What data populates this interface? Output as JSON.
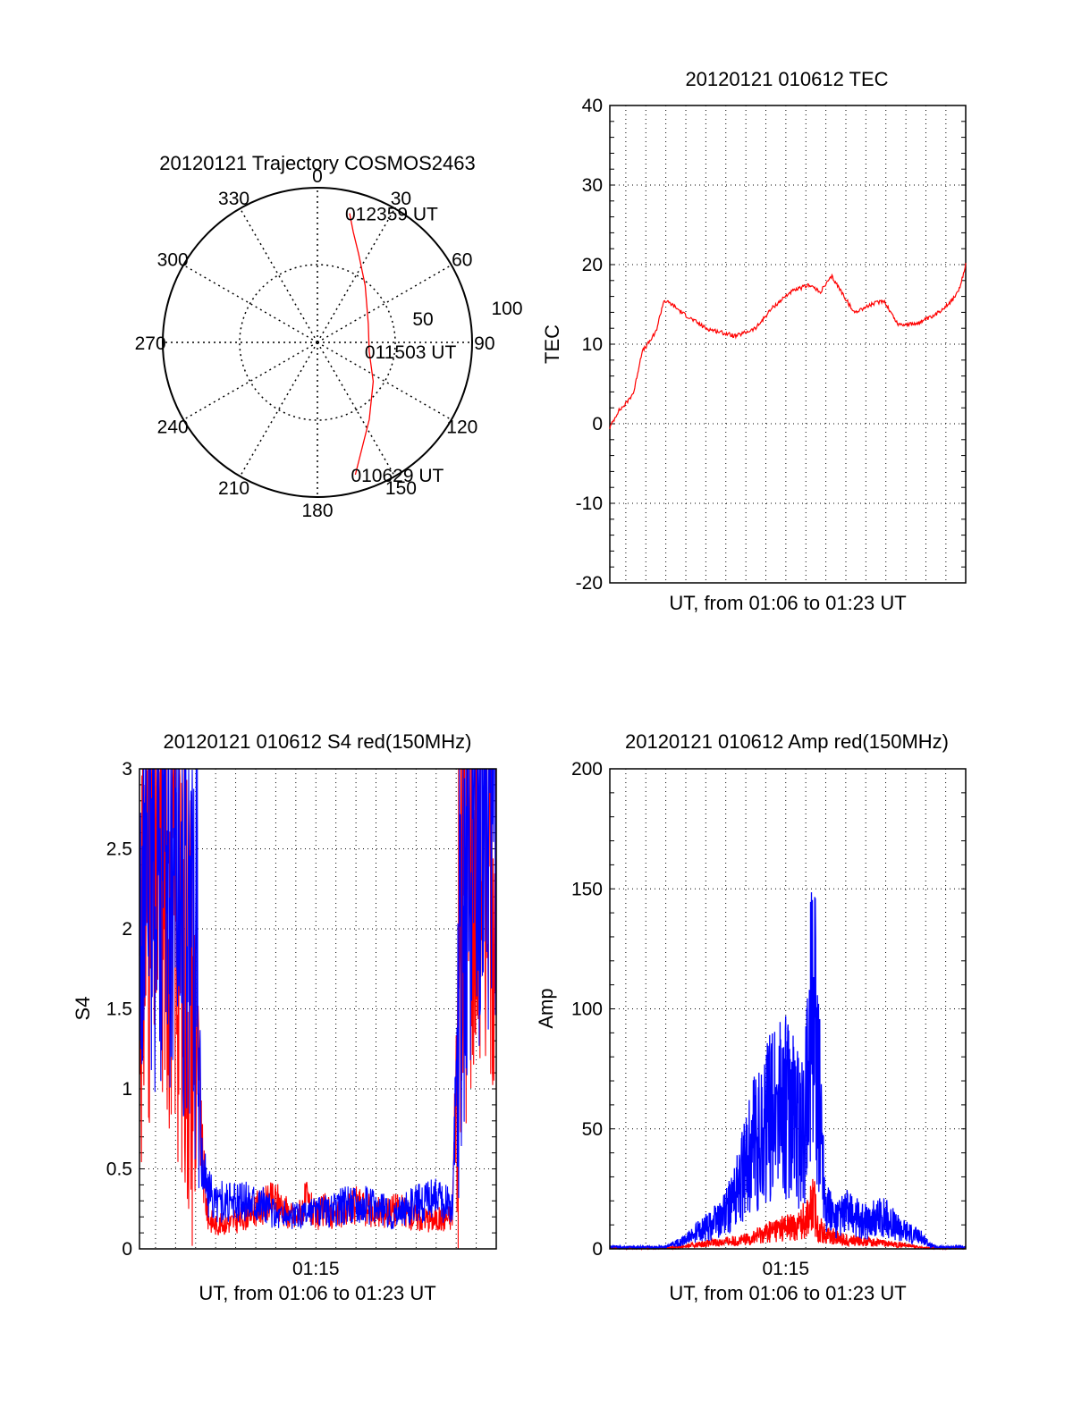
{
  "colors": {
    "red": "#ff0000",
    "blue": "#0000ff",
    "axis": "#000000",
    "grid": "#000000",
    "background": "#ffffff"
  },
  "chart_data": [
    {
      "type": "polar",
      "title": "20120121 Trajectory COSMOS2463",
      "angle_labels": [
        {
          "deg": 0,
          "text": "0"
        },
        {
          "deg": 30,
          "text": "30"
        },
        {
          "deg": 60,
          "text": "60"
        },
        {
          "deg": 90,
          "text": "90"
        },
        {
          "deg": 120,
          "text": "120"
        },
        {
          "deg": 150,
          "text": "150"
        },
        {
          "deg": 180,
          "text": "180"
        },
        {
          "deg": 210,
          "text": "210"
        },
        {
          "deg": 240,
          "text": "240"
        },
        {
          "deg": 270,
          "text": "270"
        },
        {
          "deg": 300,
          "text": "300"
        },
        {
          "deg": 330,
          "text": "330"
        }
      ],
      "radial_labels": [
        "50",
        "100"
      ],
      "rmax": 100,
      "grid": true,
      "track": {
        "color": "#ff0000",
        "points": [
          {
            "az": 14,
            "r": 86
          },
          {
            "az": 18,
            "r": 75
          },
          {
            "az": 25,
            "r": 63
          },
          {
            "az": 40,
            "r": 48
          },
          {
            "az": 70,
            "r": 35
          },
          {
            "az": 100,
            "r": 34
          },
          {
            "az": 125,
            "r": 44
          },
          {
            "az": 146,
            "r": 60
          },
          {
            "az": 164,
            "r": 89
          }
        ]
      },
      "annotations": [
        {
          "text": "012359 UT",
          "az": 14,
          "r": 86
        },
        {
          "text": "011503 UT",
          "az": 100,
          "r": 34
        },
        {
          "text": "010629 UT",
          "az": 164,
          "r": 89
        }
      ]
    },
    {
      "type": "line",
      "title": "20120121 010612 TEC",
      "xlabel": "UT, from 01:06 to 01:23 UT",
      "ylabel": "TEC",
      "ylim": [
        -20,
        40
      ],
      "yticks": [
        -20,
        -10,
        0,
        10,
        20,
        30,
        40
      ],
      "xlim": [
        6.2,
        23.99
      ],
      "grid": true,
      "series": [
        {
          "color": "#ff0000",
          "x": [
            6.2,
            6.6,
            7.0,
            7.4,
            7.8,
            8.1,
            8.5,
            8.9,
            9.3,
            9.9,
            11.0,
            12.5,
            13.5,
            14.3,
            15.2,
            16.2,
            16.7,
            17.3,
            17.8,
            18.4,
            19.3,
            19.9,
            20.6,
            21.4,
            22.4,
            23.3,
            23.7,
            23.99
          ],
          "y": [
            -0.5,
            1.5,
            2.5,
            4.0,
            9.0,
            10.0,
            11.5,
            15.5,
            15.0,
            13.8,
            12.0,
            11.0,
            12.0,
            14.5,
            16.5,
            17.5,
            16.5,
            18.5,
            16.5,
            14.0,
            15.0,
            15.5,
            12.5,
            12.5,
            13.5,
            15.5,
            17.0,
            20.0
          ]
        }
      ]
    },
    {
      "type": "line",
      "title": "20120121 010612 S4 red(150MHz)",
      "xlabel": "UT, from 01:06 to 01:23 UT",
      "ylabel": "S4",
      "ylim": [
        0,
        3
      ],
      "yticks": [
        0,
        0.5,
        1,
        1.5,
        2,
        2.5,
        3
      ],
      "ytick_labels": [
        "0",
        "0.5",
        "1",
        "1.5",
        "2",
        "2.5",
        "3"
      ],
      "xticks": [
        {
          "value": 15.0,
          "label": "01:15"
        }
      ],
      "xlim": [
        6.2,
        24.0
      ],
      "grid": true,
      "series": [
        {
          "color": "#ff0000",
          "x": [
            6.2,
            7.0,
            8.0,
            9.0,
            9.3,
            9.6,
            10.0,
            11.0,
            12.0,
            13.0,
            14.0,
            14.5,
            15.0,
            15.5,
            16.0,
            17.0,
            18.0,
            19.0,
            20.0,
            21.0,
            21.8,
            22.2,
            22.8,
            23.5,
            24.0
          ],
          "y": [
            2.0,
            2.5,
            2.2,
            1.5,
            0.6,
            0.2,
            0.15,
            0.17,
            0.25,
            0.3,
            0.18,
            0.3,
            0.2,
            0.25,
            0.2,
            0.28,
            0.22,
            0.25,
            0.2,
            0.18,
            0.2,
            2.0,
            2.6,
            2.8,
            2.5
          ]
        },
        {
          "color": "#0000ff",
          "x": [
            6.2,
            7.0,
            8.0,
            9.0,
            9.3,
            9.6,
            10.0,
            11.0,
            12.0,
            13.0,
            14.0,
            15.0,
            16.0,
            17.0,
            18.0,
            19.0,
            20.0,
            21.0,
            21.8,
            22.2,
            22.8,
            23.5,
            24.0
          ],
          "y": [
            2.5,
            2.4,
            2.6,
            2.0,
            0.6,
            0.35,
            0.3,
            0.28,
            0.32,
            0.22,
            0.2,
            0.22,
            0.25,
            0.3,
            0.25,
            0.22,
            0.28,
            0.32,
            0.25,
            1.8,
            2.6,
            2.9,
            2.4
          ]
        }
      ]
    },
    {
      "type": "line",
      "title": "20120121 010612 Amp red(150MHz)",
      "xlabel": "UT, from 01:06 to 01:23 UT",
      "ylabel": "Amp",
      "ylim": [
        0,
        200
      ],
      "yticks": [
        0,
        50,
        100,
        150,
        200
      ],
      "xticks": [
        {
          "value": 15.0,
          "label": "01:15"
        }
      ],
      "xlim": [
        6.2,
        24.0
      ],
      "grid": true,
      "series": [
        {
          "color": "#ff0000",
          "x": [
            6.2,
            9.0,
            10.0,
            11.0,
            12.0,
            13.0,
            13.5,
            14.0,
            14.5,
            15.0,
            15.5,
            15.9,
            16.4,
            16.6,
            17.0,
            18.0,
            19.0,
            20.0,
            21.0,
            22.0,
            24.0
          ],
          "y": [
            0.5,
            0.5,
            1.5,
            3.0,
            4.0,
            5.0,
            7.0,
            9.0,
            11.0,
            12.0,
            12.0,
            16.0,
            25.0,
            12.0,
            8.0,
            5.0,
            4.0,
            3.0,
            2.0,
            0.5,
            0.5
          ]
        },
        {
          "color": "#0000ff",
          "x": [
            6.2,
            9.0,
            10.0,
            11.0,
            12.0,
            12.6,
            13.0,
            13.5,
            14.0,
            14.5,
            15.0,
            15.5,
            15.9,
            16.1,
            16.4,
            16.6,
            17.0,
            17.5,
            18.0,
            19.0,
            20.0,
            20.5,
            21.0,
            21.8,
            22.2,
            22.5,
            24.0
          ],
          "y": [
            1.0,
            1.0,
            5.0,
            12.0,
            20.0,
            32.0,
            45.0,
            60.0,
            68.0,
            78.0,
            80.0,
            70.0,
            62.0,
            105.0,
            130.0,
            100.0,
            25.0,
            15.0,
            20.0,
            15.0,
            18.0,
            12.0,
            10.0,
            6.0,
            2.0,
            1.0,
            1.0
          ]
        }
      ]
    }
  ]
}
